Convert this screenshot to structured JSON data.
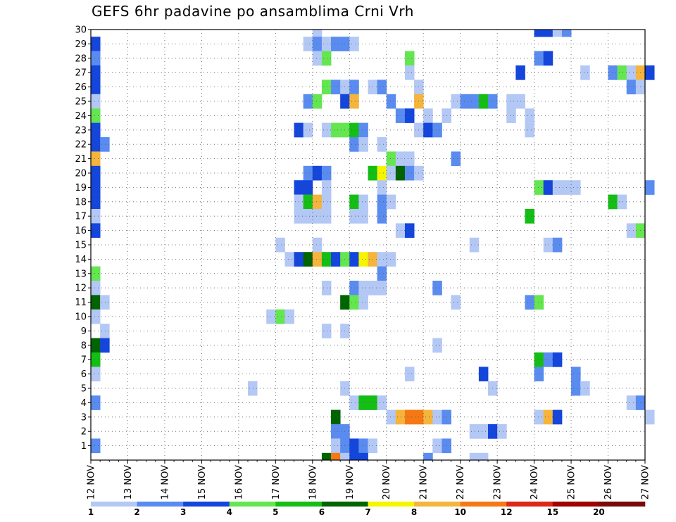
{
  "chart_data": {
    "type": "heatmap",
    "title": "GEFS 6hr padavine po ansamblima Crni Vrh",
    "xlabel": "",
    "ylabel": "",
    "x_start_day": 12,
    "steps_per_day": 4,
    "x_tick_labels": [
      "12 NOV",
      "13 NOV",
      "14 NOV",
      "15 NOV",
      "16 NOV",
      "17 NOV",
      "18 NOV",
      "19 NOV",
      "20 NOV",
      "21 NOV",
      "22 NOV",
      "23 NOV",
      "24 NOV",
      "25 NOV",
      "26 NOV",
      "27 NOV"
    ],
    "y_tick_labels": [
      "1",
      "2",
      "3",
      "4",
      "5",
      "6",
      "7",
      "8",
      "9",
      "10",
      "11",
      "12",
      "13",
      "14",
      "15",
      "16",
      "17",
      "18",
      "19",
      "20",
      "21",
      "22",
      "23",
      "24",
      "25",
      "26",
      "27",
      "28",
      "29",
      "30"
    ],
    "ylim": [
      0,
      30
    ],
    "grid": true,
    "colorbar": {
      "levels": [
        1,
        2,
        3,
        4,
        5,
        6,
        7,
        8,
        10,
        12,
        15,
        20
      ],
      "colors": [
        "#b4c8f5",
        "#5a8cf0",
        "#1446dc",
        "#64e650",
        "#14be14",
        "#006400",
        "#f5f500",
        "#f5b43c",
        "#f57814",
        "#dc2814",
        "#a00000",
        "#780a0a"
      ]
    },
    "cells": [
      {
        "member": 30,
        "step": 48,
        "value": 3
      },
      {
        "member": 30,
        "step": 49,
        "value": 3
      },
      {
        "member": 30,
        "step": 50,
        "value": 1
      },
      {
        "member": 30,
        "step": 51,
        "value": 2
      },
      {
        "member": 30,
        "step": 24,
        "value": 1
      },
      {
        "member": 29,
        "step": 0,
        "value": 3
      },
      {
        "member": 29,
        "step": 23,
        "value": 1
      },
      {
        "member": 29,
        "step": 24,
        "value": 2
      },
      {
        "member": 29,
        "step": 25,
        "value": 1
      },
      {
        "member": 29,
        "step": 26,
        "value": 2
      },
      {
        "member": 29,
        "step": 27,
        "value": 2
      },
      {
        "member": 29,
        "step": 28,
        "value": 1
      },
      {
        "member": 28,
        "step": 0,
        "value": 2
      },
      {
        "member": 28,
        "step": 24,
        "value": 1
      },
      {
        "member": 28,
        "step": 25,
        "value": 4
      },
      {
        "member": 28,
        "step": 34,
        "value": 4
      },
      {
        "member": 28,
        "step": 48,
        "value": 2
      },
      {
        "member": 28,
        "step": 49,
        "value": 3
      },
      {
        "member": 27,
        "step": 0,
        "value": 3
      },
      {
        "member": 27,
        "step": 34,
        "value": 1
      },
      {
        "member": 27,
        "step": 46,
        "value": 3
      },
      {
        "member": 27,
        "step": 53,
        "value": 1
      },
      {
        "member": 27,
        "step": 56,
        "value": 2
      },
      {
        "member": 27,
        "step": 57,
        "value": 4
      },
      {
        "member": 27,
        "step": 58,
        "value": 1
      },
      {
        "member": 27,
        "step": 59,
        "value": 8
      },
      {
        "member": 27,
        "step": 60,
        "value": 3
      },
      {
        "member": 26,
        "step": 0,
        "value": 3
      },
      {
        "member": 26,
        "step": 25,
        "value": 4
      },
      {
        "member": 26,
        "step": 26,
        "value": 2
      },
      {
        "member": 26,
        "step": 27,
        "value": 1
      },
      {
        "member": 26,
        "step": 28,
        "value": 2
      },
      {
        "member": 26,
        "step": 30,
        "value": 1
      },
      {
        "member": 26,
        "step": 31,
        "value": 2
      },
      {
        "member": 26,
        "step": 35,
        "value": 1
      },
      {
        "member": 26,
        "step": 58,
        "value": 2
      },
      {
        "member": 26,
        "step": 59,
        "value": 1
      },
      {
        "member": 25,
        "step": 0,
        "value": 1
      },
      {
        "member": 25,
        "step": 23,
        "value": 2
      },
      {
        "member": 25,
        "step": 24,
        "value": 4
      },
      {
        "member": 25,
        "step": 27,
        "value": 3
      },
      {
        "member": 25,
        "step": 28,
        "value": 9
      },
      {
        "member": 25,
        "step": 32,
        "value": 2
      },
      {
        "member": 25,
        "step": 35,
        "value": 8
      },
      {
        "member": 25,
        "step": 39,
        "value": 1
      },
      {
        "member": 25,
        "step": 40,
        "value": 2
      },
      {
        "member": 25,
        "step": 41,
        "value": 2
      },
      {
        "member": 25,
        "step": 42,
        "value": 5
      },
      {
        "member": 25,
        "step": 43,
        "value": 2
      },
      {
        "member": 25,
        "step": 45,
        "value": 1
      },
      {
        "member": 25,
        "step": 46,
        "value": 1
      },
      {
        "member": 24,
        "step": 0,
        "value": 4
      },
      {
        "member": 24,
        "step": 33,
        "value": 2
      },
      {
        "member": 24,
        "step": 34,
        "value": 3
      },
      {
        "member": 24,
        "step": 36,
        "value": 1
      },
      {
        "member": 24,
        "step": 38,
        "value": 1
      },
      {
        "member": 24,
        "step": 45,
        "value": 1
      },
      {
        "member": 24,
        "step": 47,
        "value": 1
      },
      {
        "member": 23,
        "step": 0,
        "value": 3
      },
      {
        "member": 23,
        "step": 22,
        "value": 3
      },
      {
        "member": 23,
        "step": 23,
        "value": 1
      },
      {
        "member": 23,
        "step": 25,
        "value": 1
      },
      {
        "member": 23,
        "step": 26,
        "value": 4
      },
      {
        "member": 23,
        "step": 27,
        "value": 4
      },
      {
        "member": 23,
        "step": 28,
        "value": 5
      },
      {
        "member": 23,
        "step": 29,
        "value": 2
      },
      {
        "member": 23,
        "step": 35,
        "value": 1
      },
      {
        "member": 23,
        "step": 36,
        "value": 3
      },
      {
        "member": 23,
        "step": 37,
        "value": 2
      },
      {
        "member": 23,
        "step": 47,
        "value": 1
      },
      {
        "member": 22,
        "step": 0,
        "value": 3
      },
      {
        "member": 22,
        "step": 1,
        "value": 2
      },
      {
        "member": 22,
        "step": 28,
        "value": 2
      },
      {
        "member": 22,
        "step": 29,
        "value": 1
      },
      {
        "member": 22,
        "step": 31,
        "value": 1
      },
      {
        "member": 21,
        "step": 0,
        "value": 8
      },
      {
        "member": 21,
        "step": 32,
        "value": 4
      },
      {
        "member": 21,
        "step": 33,
        "value": 1
      },
      {
        "member": 21,
        "step": 34,
        "value": 1
      },
      {
        "member": 21,
        "step": 39,
        "value": 2
      },
      {
        "member": 20,
        "step": 0,
        "value": 3
      },
      {
        "member": 20,
        "step": 23,
        "value": 2
      },
      {
        "member": 20,
        "step": 24,
        "value": 3
      },
      {
        "member": 20,
        "step": 25,
        "value": 2
      },
      {
        "member": 20,
        "step": 30,
        "value": 5
      },
      {
        "member": 20,
        "step": 31,
        "value": 7
      },
      {
        "member": 20,
        "step": 32,
        "value": 1
      },
      {
        "member": 20,
        "step": 33,
        "value": 6
      },
      {
        "member": 20,
        "step": 34,
        "value": 2
      },
      {
        "member": 20,
        "step": 35,
        "value": 1
      },
      {
        "member": 19,
        "step": 0,
        "value": 3
      },
      {
        "member": 19,
        "step": 22,
        "value": 3
      },
      {
        "member": 19,
        "step": 23,
        "value": 3
      },
      {
        "member": 19,
        "step": 25,
        "value": 1
      },
      {
        "member": 19,
        "step": 31,
        "value": 1
      },
      {
        "member": 19,
        "step": 48,
        "value": 4
      },
      {
        "member": 19,
        "step": 49,
        "value": 3
      },
      {
        "member": 19,
        "step": 50,
        "value": 1
      },
      {
        "member": 19,
        "step": 51,
        "value": 1
      },
      {
        "member": 19,
        "step": 52,
        "value": 1
      },
      {
        "member": 19,
        "step": 60,
        "value": 2
      },
      {
        "member": 18,
        "step": 0,
        "value": 3
      },
      {
        "member": 18,
        "step": 22,
        "value": 1
      },
      {
        "member": 18,
        "step": 23,
        "value": 5
      },
      {
        "member": 18,
        "step": 24,
        "value": 8
      },
      {
        "member": 18,
        "step": 25,
        "value": 1
      },
      {
        "member": 18,
        "step": 28,
        "value": 5
      },
      {
        "member": 18,
        "step": 29,
        "value": 1
      },
      {
        "member": 18,
        "step": 31,
        "value": 2
      },
      {
        "member": 18,
        "step": 32,
        "value": 1
      },
      {
        "member": 18,
        "step": 56,
        "value": 5
      },
      {
        "member": 18,
        "step": 57,
        "value": 1
      },
      {
        "member": 17,
        "step": 0,
        "value": 1
      },
      {
        "member": 17,
        "step": 22,
        "value": 1
      },
      {
        "member": 17,
        "step": 23,
        "value": 1
      },
      {
        "member": 17,
        "step": 24,
        "value": 1
      },
      {
        "member": 17,
        "step": 25,
        "value": 1
      },
      {
        "member": 17,
        "step": 28,
        "value": 1
      },
      {
        "member": 17,
        "step": 29,
        "value": 1
      },
      {
        "member": 17,
        "step": 31,
        "value": 2
      },
      {
        "member": 17,
        "step": 47,
        "value": 5
      },
      {
        "member": 16,
        "step": 0,
        "value": 3
      },
      {
        "member": 16,
        "step": 33,
        "value": 1
      },
      {
        "member": 16,
        "step": 34,
        "value": 3
      },
      {
        "member": 16,
        "step": 58,
        "value": 1
      },
      {
        "member": 16,
        "step": 59,
        "value": 4
      },
      {
        "member": 15,
        "step": 20,
        "value": 1
      },
      {
        "member": 15,
        "step": 24,
        "value": 1
      },
      {
        "member": 15,
        "step": 41,
        "value": 1
      },
      {
        "member": 15,
        "step": 49,
        "value": 1
      },
      {
        "member": 15,
        "step": 50,
        "value": 2
      },
      {
        "member": 14,
        "step": 21,
        "value": 1
      },
      {
        "member": 14,
        "step": 22,
        "value": 3
      },
      {
        "member": 14,
        "step": 23,
        "value": 6
      },
      {
        "member": 14,
        "step": 24,
        "value": 8
      },
      {
        "member": 14,
        "step": 25,
        "value": 5
      },
      {
        "member": 14,
        "step": 26,
        "value": 3
      },
      {
        "member": 14,
        "step": 27,
        "value": 4
      },
      {
        "member": 14,
        "step": 28,
        "value": 3
      },
      {
        "member": 14,
        "step": 29,
        "value": 7
      },
      {
        "member": 14,
        "step": 30,
        "value": 9
      },
      {
        "member": 14,
        "step": 31,
        "value": 1
      },
      {
        "member": 14,
        "step": 32,
        "value": 1
      },
      {
        "member": 13,
        "step": 0,
        "value": 4
      },
      {
        "member": 13,
        "step": 31,
        "value": 2
      },
      {
        "member": 12,
        "step": 0,
        "value": 1
      },
      {
        "member": 12,
        "step": 25,
        "value": 1
      },
      {
        "member": 12,
        "step": 28,
        "value": 2
      },
      {
        "member": 12,
        "step": 29,
        "value": 1
      },
      {
        "member": 12,
        "step": 30,
        "value": 1
      },
      {
        "member": 12,
        "step": 31,
        "value": 1
      },
      {
        "member": 12,
        "step": 37,
        "value": 2
      },
      {
        "member": 11,
        "step": 0,
        "value": 6
      },
      {
        "member": 11,
        "step": 1,
        "value": 1
      },
      {
        "member": 11,
        "step": 27,
        "value": 6
      },
      {
        "member": 11,
        "step": 28,
        "value": 4
      },
      {
        "member": 11,
        "step": 29,
        "value": 1
      },
      {
        "member": 11,
        "step": 39,
        "value": 1
      },
      {
        "member": 11,
        "step": 47,
        "value": 2
      },
      {
        "member": 11,
        "step": 48,
        "value": 4
      },
      {
        "member": 10,
        "step": 0,
        "value": 1
      },
      {
        "member": 10,
        "step": 19,
        "value": 1
      },
      {
        "member": 10,
        "step": 20,
        "value": 4
      },
      {
        "member": 10,
        "step": 21,
        "value": 1
      },
      {
        "member": 9,
        "step": 1,
        "value": 1
      },
      {
        "member": 9,
        "step": 25,
        "value": 1
      },
      {
        "member": 9,
        "step": 27,
        "value": 1
      },
      {
        "member": 8,
        "step": 0,
        "value": 6
      },
      {
        "member": 8,
        "step": 1,
        "value": 3
      },
      {
        "member": 8,
        "step": 37,
        "value": 1
      },
      {
        "member": 7,
        "step": 0,
        "value": 5
      },
      {
        "member": 7,
        "step": 48,
        "value": 5
      },
      {
        "member": 7,
        "step": 49,
        "value": 2
      },
      {
        "member": 7,
        "step": 50,
        "value": 3
      },
      {
        "member": 6,
        "step": 0,
        "value": 1
      },
      {
        "member": 6,
        "step": 34,
        "value": 1
      },
      {
        "member": 6,
        "step": 42,
        "value": 3
      },
      {
        "member": 6,
        "step": 48,
        "value": 2
      },
      {
        "member": 6,
        "step": 52,
        "value": 2
      },
      {
        "member": 5,
        "step": 17,
        "value": 1
      },
      {
        "member": 5,
        "step": 27,
        "value": 1
      },
      {
        "member": 5,
        "step": 43,
        "value": 1
      },
      {
        "member": 5,
        "step": 52,
        "value": 2
      },
      {
        "member": 5,
        "step": 53,
        "value": 1
      },
      {
        "member": 4,
        "step": 0,
        "value": 2
      },
      {
        "member": 4,
        "step": 28,
        "value": 1
      },
      {
        "member": 4,
        "step": 29,
        "value": 5
      },
      {
        "member": 4,
        "step": 30,
        "value": 5
      },
      {
        "member": 4,
        "step": 31,
        "value": 1
      },
      {
        "member": 4,
        "step": 58,
        "value": 1
      },
      {
        "member": 4,
        "step": 59,
        "value": 2
      },
      {
        "member": 3,
        "step": 26,
        "value": 6
      },
      {
        "member": 3,
        "step": 32,
        "value": 1
      },
      {
        "member": 3,
        "step": 33,
        "value": 9
      },
      {
        "member": 3,
        "step": 34,
        "value": 11
      },
      {
        "member": 3,
        "step": 35,
        "value": 11
      },
      {
        "member": 3,
        "step": 36,
        "value": 8
      },
      {
        "member": 3,
        "step": 37,
        "value": 1
      },
      {
        "member": 3,
        "step": 38,
        "value": 2
      },
      {
        "member": 3,
        "step": 48,
        "value": 1
      },
      {
        "member": 3,
        "step": 49,
        "value": 8
      },
      {
        "member": 3,
        "step": 50,
        "value": 3
      },
      {
        "member": 3,
        "step": 60,
        "value": 1
      },
      {
        "member": 2,
        "step": 26,
        "value": 2
      },
      {
        "member": 2,
        "step": 27,
        "value": 2
      },
      {
        "member": 2,
        "step": 41,
        "value": 1
      },
      {
        "member": 2,
        "step": 42,
        "value": 1
      },
      {
        "member": 2,
        "step": 43,
        "value": 3
      },
      {
        "member": 2,
        "step": 44,
        "value": 1
      },
      {
        "member": 1,
        "step": 0,
        "value": 2
      },
      {
        "member": 1,
        "step": 26,
        "value": 1
      },
      {
        "member": 1,
        "step": 27,
        "value": 2
      },
      {
        "member": 1,
        "step": 28,
        "value": 3
      },
      {
        "member": 1,
        "step": 29,
        "value": 2
      },
      {
        "member": 1,
        "step": 30,
        "value": 1
      },
      {
        "member": 1,
        "step": 37,
        "value": 1
      },
      {
        "member": 1,
        "step": 38,
        "value": 2
      },
      {
        "member": 0,
        "step": 25,
        "value": 6
      },
      {
        "member": 0,
        "step": 26,
        "value": 10
      },
      {
        "member": 0,
        "step": 27,
        "value": 1
      },
      {
        "member": 0,
        "step": 28,
        "value": 3
      },
      {
        "member": 0,
        "step": 29,
        "value": 3
      },
      {
        "member": 0,
        "step": 36,
        "value": 2
      },
      {
        "member": 0,
        "step": 41,
        "value": 1
      },
      {
        "member": 0,
        "step": 42,
        "value": 1
      }
    ]
  }
}
